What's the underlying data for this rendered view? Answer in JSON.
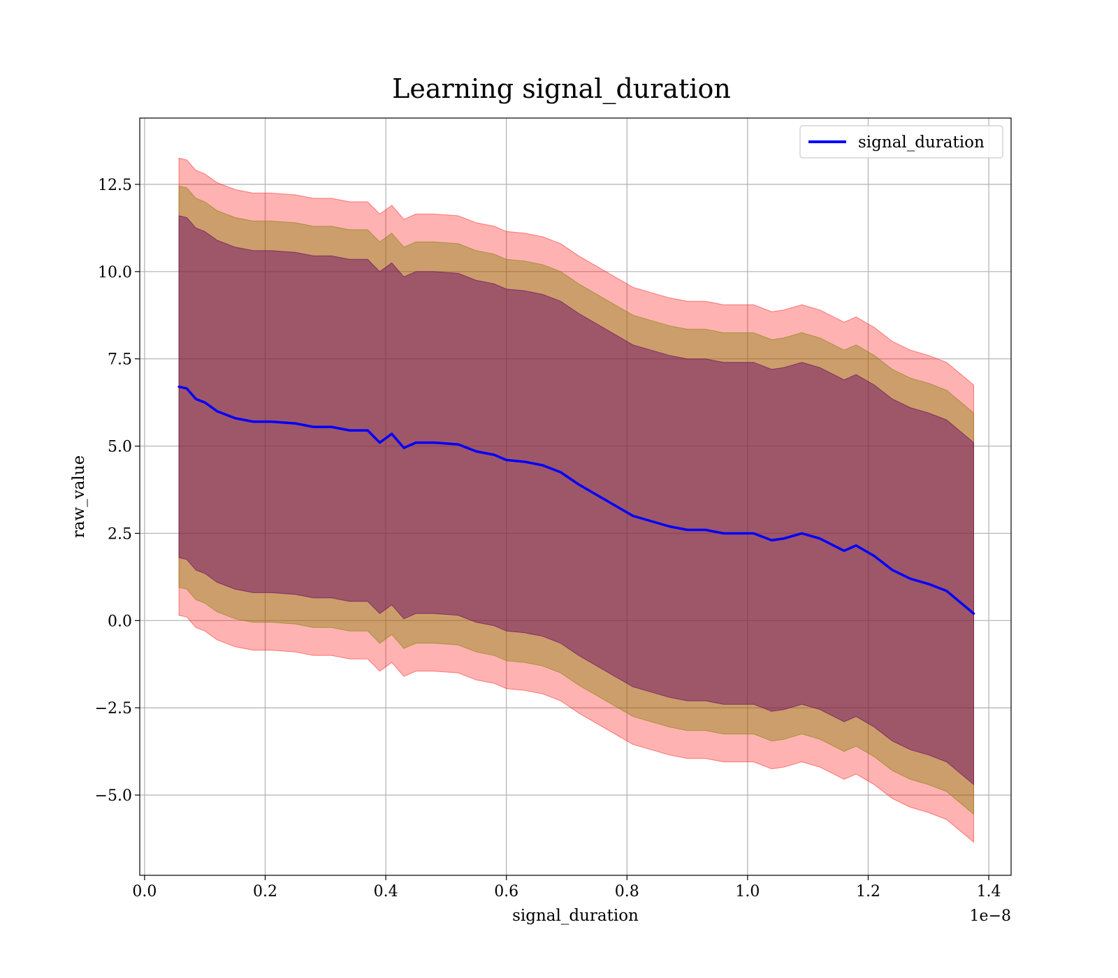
{
  "chart_data": {
    "type": "line",
    "title": "Learning signal_duration",
    "xlabel": "signal_duration",
    "ylabel": "raw_value",
    "x_offset_text": "1e−8",
    "x_scale": 1e-08,
    "xlim": [
      -0.008,
      1.437
    ],
    "ylim": [
      -7.3,
      14.4
    ],
    "grid": true,
    "legend_position": "top-right",
    "xticks": [
      0.0,
      0.2,
      0.4,
      0.6,
      0.8,
      1.0,
      1.2,
      1.4
    ],
    "xtick_labels": [
      "0.0",
      "0.2",
      "0.4",
      "0.6",
      "0.8",
      "1.0",
      "1.2",
      "1.4"
    ],
    "yticks": [
      -5.0,
      -2.5,
      0.0,
      2.5,
      5.0,
      7.5,
      10.0,
      12.5
    ],
    "ytick_labels": [
      "−5.0",
      "−2.5",
      "0.0",
      "2.5",
      "5.0",
      "7.5",
      "10.0",
      "12.5"
    ],
    "colors": {
      "line": "#0000ff",
      "band_outer": "#ff0000",
      "band_middle": "#808000",
      "band_inner": "#660066"
    },
    "series": [
      {
        "name": "signal_duration",
        "x": [
          0.057,
          0.07,
          0.085,
          0.1,
          0.12,
          0.15,
          0.18,
          0.21,
          0.25,
          0.28,
          0.31,
          0.34,
          0.37,
          0.39,
          0.41,
          0.43,
          0.45,
          0.48,
          0.52,
          0.55,
          0.58,
          0.6,
          0.63,
          0.66,
          0.69,
          0.72,
          0.75,
          0.78,
          0.81,
          0.84,
          0.87,
          0.9,
          0.93,
          0.96,
          0.99,
          1.01,
          1.04,
          1.06,
          1.09,
          1.12,
          1.16,
          1.18,
          1.21,
          1.24,
          1.27,
          1.3,
          1.33,
          1.375
        ],
        "y": [
          6.7,
          6.65,
          6.35,
          6.25,
          6.0,
          5.8,
          5.7,
          5.7,
          5.65,
          5.55,
          5.55,
          5.45,
          5.45,
          5.1,
          5.35,
          4.95,
          5.1,
          5.1,
          5.05,
          4.85,
          4.75,
          4.6,
          4.55,
          4.45,
          4.25,
          3.9,
          3.6,
          3.3,
          3.0,
          2.85,
          2.7,
          2.6,
          2.6,
          2.5,
          2.5,
          2.5,
          2.3,
          2.35,
          2.5,
          2.35,
          2.0,
          2.15,
          1.85,
          1.45,
          1.2,
          1.05,
          0.85,
          0.2
        ],
        "band_half_widths": {
          "outer": 6.55,
          "middle": 5.75,
          "inner": 4.9
        }
      }
    ]
  }
}
